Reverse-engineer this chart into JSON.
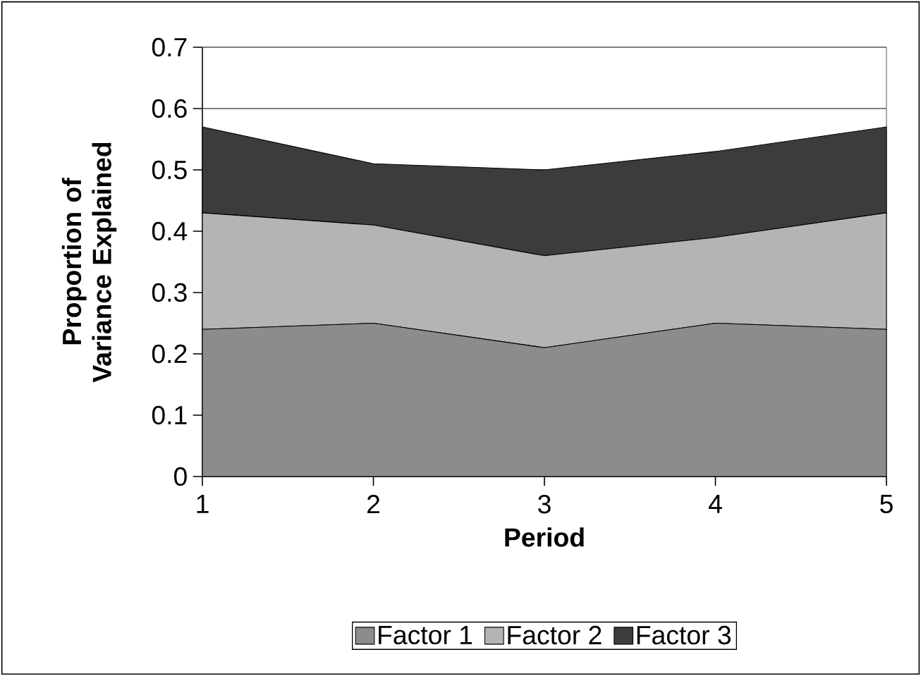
{
  "chart_data": {
    "type": "area",
    "stacked": true,
    "xlabel": "Period",
    "ylabel": "Proportion of Variance Explained",
    "x": [
      1,
      2,
      3,
      4,
      5
    ],
    "xlim": [
      1,
      5
    ],
    "xticks": [
      1,
      2,
      3,
      4,
      5
    ],
    "ylim": [
      0,
      0.7
    ],
    "yticks": [
      0,
      0.1,
      0.2,
      0.3,
      0.4,
      0.5,
      0.6,
      0.7
    ],
    "grid": "y",
    "legend": "bottom",
    "series": [
      {
        "name": "Factor 1",
        "color": "#8c8c8c",
        "values": [
          0.24,
          0.25,
          0.21,
          0.25,
          0.24
        ]
      },
      {
        "name": "Factor 2",
        "color": "#b4b4b4",
        "values": [
          0.19,
          0.16,
          0.15,
          0.14,
          0.19
        ]
      },
      {
        "name": "Factor 3",
        "color": "#3c3c3c",
        "values": [
          0.14,
          0.1,
          0.14,
          0.14,
          0.14
        ]
      }
    ]
  }
}
